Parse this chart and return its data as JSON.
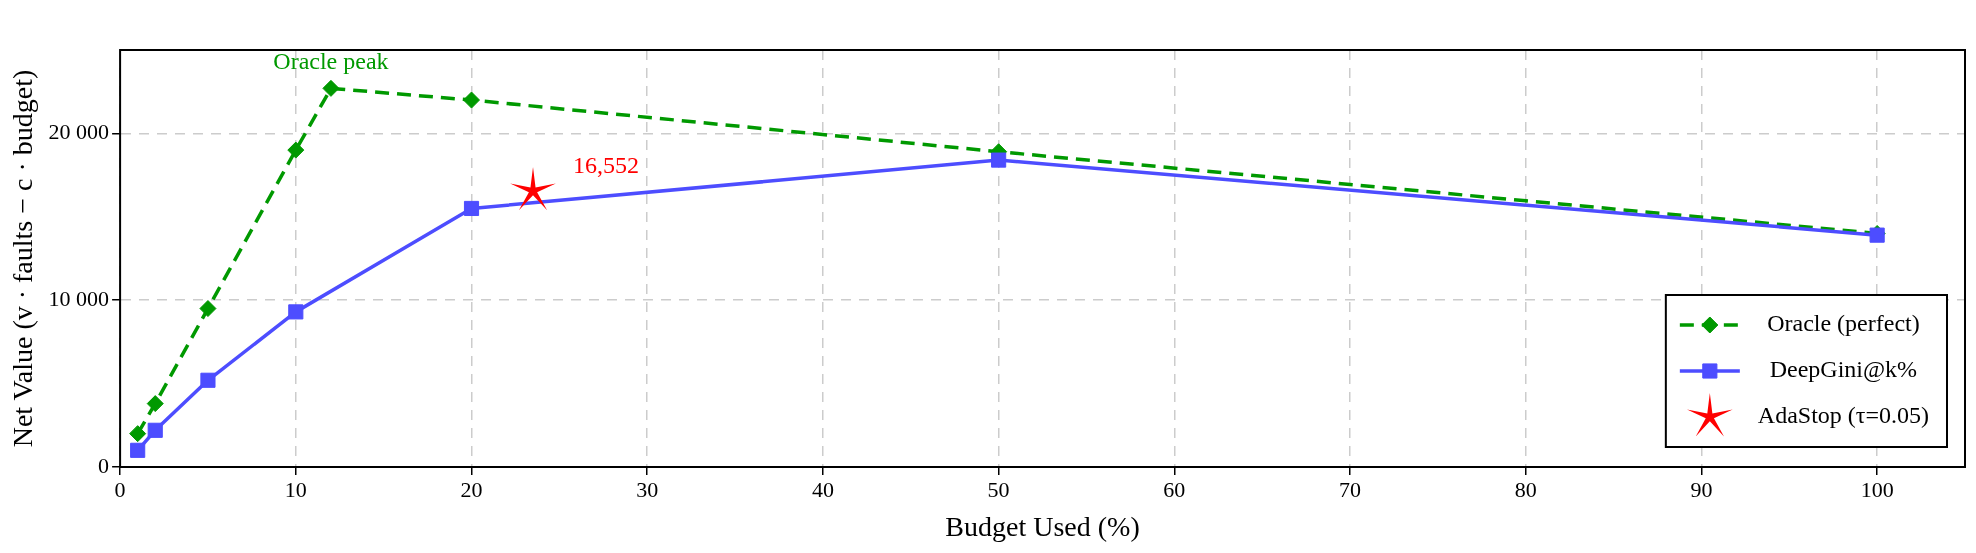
{
  "chart_data": {
    "type": "line",
    "xlabel": "Budget Used (%)",
    "ylabel": "Net Value (v · faults − c · budget)",
    "xlim": [
      0,
      105
    ],
    "xticks": [
      0,
      10,
      20,
      30,
      40,
      50,
      60,
      70,
      80,
      90,
      100
    ],
    "ylim": [
      0,
      25000
    ],
    "yticks": [
      0,
      {
        "value": 10000,
        "label": "10 000"
      },
      {
        "value": 20000,
        "label": "20 000"
      }
    ],
    "grid": true,
    "legend": "bottom right",
    "series": [
      {
        "name": "Oracle (perfect)",
        "color": "#009900",
        "marker": "diamond",
        "line_style": "dashed",
        "x": [
          1,
          2,
          5,
          10,
          12,
          20,
          50,
          100
        ],
        "values": [
          2000,
          3800,
          9500,
          19000,
          22700,
          22000,
          18900,
          14000
        ]
      },
      {
        "name": "DeepGini@k%",
        "color": "#4d4dff",
        "marker": "square",
        "line_style": "solid",
        "x": [
          1,
          2,
          5,
          10,
          20,
          50,
          100
        ],
        "values": [
          1000,
          2200,
          5200,
          9300,
          15500,
          18400,
          13900
        ]
      },
      {
        "name": "AdaStop (τ=0.05)",
        "type": "scatter",
        "color": "#ff0000",
        "marker": "star",
        "x": [
          23.5
        ],
        "values": [
          16552
        ]
      }
    ],
    "annotations": [
      {
        "text": "Oracle peak",
        "x": 12,
        "y": 22700
      },
      {
        "text": "16,552",
        "x": 23.5,
        "y": 16552
      }
    ]
  }
}
